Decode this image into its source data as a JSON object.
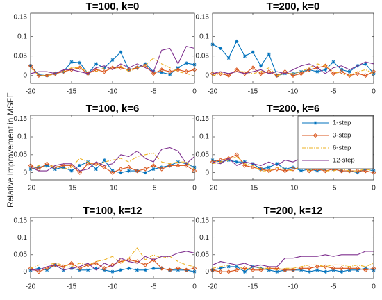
{
  "chart_data": [
    {
      "type": "line",
      "title": "T=100, k=0",
      "ylabel": "Relative Improvement in MSFE",
      "x": [
        -20,
        -19,
        -18,
        -17,
        -16,
        -15,
        -14,
        -13,
        -12,
        -11,
        -10,
        -9,
        -8,
        -7,
        -6,
        -5,
        -4,
        -3,
        -2,
        -1,
        0
      ],
      "xlim": [
        -20,
        0
      ],
      "xticks": [
        -20,
        -15,
        -10,
        -5,
        0
      ],
      "ylim": [
        -0.02,
        0.16
      ],
      "yticks": [
        0,
        0.05,
        0.1,
        0.15
      ],
      "series": [
        {
          "name": "1-step",
          "color": "#0072bd",
          "marker": "plus",
          "values": [
            0.025,
            0.002,
            0.0,
            0.005,
            0.01,
            0.035,
            0.033,
            0.005,
            0.03,
            0.02,
            0.04,
            0.06,
            0.015,
            0.02,
            0.03,
            0.01,
            0.008,
            0.003,
            0.02,
            0.032,
            0.028
          ]
        },
        {
          "name": "3-step",
          "color": "#d95319",
          "marker": "diamond",
          "values": [
            0.025,
            0.0,
            0.0,
            0.005,
            0.01,
            0.015,
            0.02,
            0.005,
            0.015,
            0.01,
            0.02,
            0.02,
            0.015,
            0.02,
            0.025,
            0.005,
            0.015,
            0.01,
            0.015,
            0.01,
            0.015
          ]
        },
        {
          "name": "6-step",
          "color": "#edb120",
          "dash": "dashdot",
          "values": [
            0.02,
            0.0,
            0.0,
            0.003,
            0.01,
            0.02,
            0.02,
            0.01,
            0.01,
            0.02,
            0.015,
            0.025,
            0.01,
            0.02,
            0.025,
            0.045,
            0.03,
            0.02,
            0.01,
            0.005,
            0.0
          ]
        },
        {
          "name": "12-step",
          "color": "#7e2f8e",
          "values": [
            0.005,
            0.01,
            0.01,
            0.005,
            0.015,
            0.015,
            0.01,
            0.005,
            0.02,
            0.025,
            0.015,
            0.03,
            0.02,
            0.03,
            0.02,
            0.01,
            0.065,
            0.07,
            0.03,
            0.075,
            0.07
          ]
        }
      ]
    },
    {
      "type": "line",
      "title": "T=200, k=0",
      "x": [
        -20,
        -19,
        -18,
        -17,
        -16,
        -15,
        -14,
        -13,
        -12,
        -11,
        -10,
        -9,
        -8,
        -7,
        -6,
        -5,
        -4,
        -3,
        -2,
        -1,
        0
      ],
      "xlim": [
        -20,
        0
      ],
      "xticks": [
        -20,
        -15,
        -10,
        -5,
        0
      ],
      "ylim": [
        -0.02,
        0.16
      ],
      "yticks": [
        0,
        0.05,
        0.1,
        0.15
      ],
      "series": [
        {
          "name": "1-step",
          "color": "#0072bd",
          "marker": "plus",
          "values": [
            0.08,
            0.07,
            0.045,
            0.088,
            0.05,
            0.06,
            0.025,
            0.055,
            0.0,
            0.005,
            0.005,
            0.01,
            0.015,
            0.01,
            0.015,
            0.035,
            0.015,
            0.01,
            0.025,
            0.03,
            0.005
          ]
        },
        {
          "name": "3-step",
          "color": "#d95319",
          "marker": "diamond",
          "values": [
            0.005,
            0.005,
            0.0,
            0.015,
            0.005,
            0.02,
            0.005,
            0.01,
            0.0,
            0.01,
            0.0,
            0.005,
            0.015,
            0.02,
            0.025,
            0.005,
            0.01,
            0.0,
            0.005,
            0.0,
            0.01
          ]
        },
        {
          "name": "6-step",
          "color": "#edb120",
          "dash": "dashdot",
          "values": [
            0.0,
            0.005,
            0.005,
            0.01,
            0.01,
            0.005,
            0.01,
            0.02,
            0.0,
            0.005,
            0.005,
            0.01,
            0.02,
            0.03,
            0.025,
            0.01,
            0.005,
            0.0,
            0.01,
            0.015,
            0.005
          ]
        },
        {
          "name": "12-step",
          "color": "#7e2f8e",
          "values": [
            0.005,
            0.01,
            0.005,
            0.01,
            0.005,
            0.01,
            0.015,
            0.005,
            0.01,
            0.005,
            0.015,
            0.025,
            0.03,
            0.02,
            0.005,
            0.02,
            0.025,
            0.015,
            0.025,
            0.035,
            0.03
          ]
        }
      ]
    },
    {
      "type": "line",
      "title": "T=100, k=6",
      "x": [
        -20,
        -19,
        -18,
        -17,
        -16,
        -15,
        -14,
        -13,
        -12,
        -11,
        -10,
        -9,
        -8,
        -7,
        -6,
        -5,
        -4,
        -3,
        -2,
        -1,
        0
      ],
      "xlim": [
        -20,
        0
      ],
      "xticks": [
        -20,
        -15,
        -10,
        -5,
        0
      ],
      "ylim": [
        -0.02,
        0.16
      ],
      "yticks": [
        0,
        0.05,
        0.1,
        0.15
      ],
      "series": [
        {
          "name": "1-step",
          "color": "#0072bd",
          "marker": "plus",
          "values": [
            0.01,
            0.015,
            0.02,
            0.01,
            0.015,
            0.005,
            0.02,
            0.03,
            0.01,
            0.035,
            0.005,
            0.0,
            0.005,
            0.005,
            0.0,
            0.01,
            0.015,
            0.02,
            0.03,
            0.025,
            0.015
          ]
        },
        {
          "name": "3-step",
          "color": "#d95319",
          "marker": "diamond",
          "values": [
            0.02,
            0.01,
            0.025,
            0.015,
            0.02,
            0.02,
            0.0,
            0.025,
            0.025,
            0.015,
            0.0,
            0.01,
            0.015,
            0.005,
            0.01,
            0.02,
            0.01,
            0.02,
            0.02,
            0.02,
            0.005
          ]
        },
        {
          "name": "6-step",
          "color": "#edb120",
          "dash": "dashdot",
          "values": [
            0.01,
            0.02,
            0.015,
            0.02,
            0.01,
            0.015,
            0.04,
            0.03,
            0.02,
            0.03,
            0.035,
            0.04,
            0.03,
            0.045,
            0.05,
            0.055,
            0.03,
            0.025,
            0.03,
            0.03,
            0.01
          ]
        },
        {
          "name": "12-step",
          "color": "#7e2f8e",
          "values": [
            0.015,
            0.005,
            0.005,
            0.02,
            0.025,
            0.025,
            0.005,
            0.01,
            0.03,
            0.02,
            0.025,
            0.05,
            0.045,
            0.06,
            0.04,
            0.03,
            0.065,
            0.07,
            0.06,
            0.025,
            0.045
          ]
        }
      ]
    },
    {
      "type": "line",
      "title": "T=200, k=6",
      "legend": "upper right",
      "x": [
        -20,
        -19,
        -18,
        -17,
        -16,
        -15,
        -14,
        -13,
        -12,
        -11,
        -10,
        -9,
        -8,
        -7,
        -6,
        -5,
        -4,
        -3,
        -2,
        -1,
        0
      ],
      "xlim": [
        -20,
        0
      ],
      "xticks": [
        -20,
        -15,
        -10,
        -5,
        0
      ],
      "ylim": [
        -0.02,
        0.16
      ],
      "yticks": [
        0,
        0.05,
        0.1,
        0.15
      ],
      "series": [
        {
          "name": "1-step",
          "color": "#0072bd",
          "marker": "plus",
          "values": [
            0.035,
            0.03,
            0.035,
            0.03,
            0.03,
            0.025,
            0.01,
            0.015,
            0.025,
            0.01,
            0.015,
            0.005,
            0.01,
            0.005,
            0.01,
            0.01,
            0.005,
            0.005,
            0.0,
            0.01,
            0.005
          ]
        },
        {
          "name": "3-step",
          "color": "#d95319",
          "marker": "diamond",
          "values": [
            0.03,
            0.035,
            0.04,
            0.05,
            0.02,
            0.015,
            0.01,
            0.005,
            0.01,
            0.005,
            0.01,
            0.015,
            0.005,
            0.01,
            0.005,
            0.01,
            0.005,
            0.005,
            0.005,
            0.005,
            0.0
          ]
        },
        {
          "name": "6-step",
          "color": "#edb120",
          "dash": "dashdot",
          "values": [
            0.025,
            0.03,
            0.035,
            0.045,
            0.025,
            0.02,
            0.005,
            0.005,
            0.015,
            0.01,
            0.005,
            0.02,
            0.005,
            0.015,
            0.005,
            0.005,
            0.01,
            0.005,
            0.005,
            0.01,
            0.005
          ]
        },
        {
          "name": "12-step",
          "color": "#7e2f8e",
          "values": [
            0.03,
            0.025,
            0.04,
            0.02,
            0.03,
            0.025,
            0.02,
            0.03,
            0.02,
            0.035,
            0.03,
            0.04,
            0.02,
            0.025,
            0.03,
            0.025,
            0.035,
            0.035,
            0.015,
            0.02,
            0.01
          ]
        }
      ]
    },
    {
      "type": "line",
      "title": "T=100, k=12",
      "x": [
        -20,
        -19,
        -18,
        -17,
        -16,
        -15,
        -14,
        -13,
        -12,
        -11,
        -10,
        -9,
        -8,
        -7,
        -6,
        -5,
        -4,
        -3,
        -2,
        -1,
        0
      ],
      "xlim": [
        -20,
        0
      ],
      "xticks": [
        -20,
        -15,
        -10,
        -5,
        0
      ],
      "ylim": [
        -0.02,
        0.16
      ],
      "yticks": [
        0,
        0.05,
        0.1,
        0.15
      ],
      "series": [
        {
          "name": "1-step",
          "color": "#0072bd",
          "marker": "plus",
          "values": [
            0.005,
            0.01,
            0.005,
            0.02,
            0.005,
            0.01,
            0.005,
            0.005,
            0.01,
            0.005,
            0.0,
            0.005,
            0.01,
            0.005,
            0.005,
            0.01,
            0.01,
            0.005,
            0.005,
            0.005,
            0.0
          ]
        },
        {
          "name": "3-step",
          "color": "#d95319",
          "marker": "diamond",
          "values": [
            0.01,
            0.0,
            0.01,
            0.02,
            0.015,
            0.025,
            0.01,
            0.02,
            0.025,
            0.01,
            0.02,
            0.03,
            0.035,
            0.03,
            0.02,
            0.035,
            0.01,
            0.005,
            0.01,
            0.005,
            0.01
          ]
        },
        {
          "name": "6-step",
          "color": "#edb120",
          "dash": "dashdot",
          "values": [
            0.01,
            0.02,
            0.02,
            0.025,
            0.02,
            0.015,
            0.025,
            0.02,
            0.03,
            0.035,
            0.045,
            0.025,
            0.04,
            0.07,
            0.035,
            0.05,
            0.04,
            0.045,
            0.03,
            0.02,
            0.015
          ]
        },
        {
          "name": "12-step",
          "color": "#7e2f8e",
          "values": [
            0.005,
            0.005,
            0.015,
            0.02,
            0.005,
            0.01,
            0.015,
            0.025,
            0.005,
            0.025,
            0.015,
            0.04,
            0.03,
            0.025,
            0.045,
            0.035,
            0.045,
            0.045,
            0.055,
            0.06,
            0.055
          ]
        }
      ]
    },
    {
      "type": "line",
      "title": "T=200, k=12",
      "x": [
        -20,
        -19,
        -18,
        -17,
        -16,
        -15,
        -14,
        -13,
        -12,
        -11,
        -10,
        -9,
        -8,
        -7,
        -6,
        -5,
        -4,
        -3,
        -2,
        -1,
        0
      ],
      "xlim": [
        -20,
        0
      ],
      "xticks": [
        -20,
        -15,
        -10,
        -5,
        0
      ],
      "ylim": [
        -0.02,
        0.16
      ],
      "yticks": [
        0,
        0.05,
        0.1,
        0.15
      ],
      "series": [
        {
          "name": "1-step",
          "color": "#0072bd",
          "marker": "plus",
          "values": [
            0.005,
            0.01,
            0.015,
            0.015,
            0.0,
            0.015,
            0.01,
            0.005,
            0.0,
            0.005,
            0.005,
            0.005,
            0.0,
            0.005,
            0.0,
            0.005,
            0.0,
            0.005,
            0.005,
            0.01,
            0.005
          ]
        },
        {
          "name": "3-step",
          "color": "#d95319",
          "marker": "diamond",
          "values": [
            0.005,
            0.0,
            0.0,
            0.005,
            0.01,
            0.005,
            0.005,
            0.01,
            0.01,
            0.005,
            0.005,
            0.01,
            0.01,
            0.015,
            0.015,
            0.01,
            0.01,
            0.01,
            0.01,
            0.005,
            0.01
          ]
        },
        {
          "name": "6-step",
          "color": "#edb120",
          "dash": "dashdot",
          "values": [
            0.01,
            0.015,
            0.02,
            0.02,
            0.005,
            0.015,
            0.01,
            0.01,
            0.005,
            0.01,
            0.01,
            0.015,
            0.02,
            0.02,
            0.015,
            0.02,
            0.02,
            0.015,
            0.02,
            0.015,
            0.025
          ]
        },
        {
          "name": "12-step",
          "color": "#7e2f8e",
          "values": [
            0.02,
            0.03,
            0.025,
            0.02,
            0.025,
            0.015,
            0.02,
            0.015,
            0.015,
            0.04,
            0.04,
            0.045,
            0.045,
            0.045,
            0.05,
            0.045,
            0.05,
            0.05,
            0.05,
            0.06,
            0.06
          ]
        }
      ]
    }
  ]
}
